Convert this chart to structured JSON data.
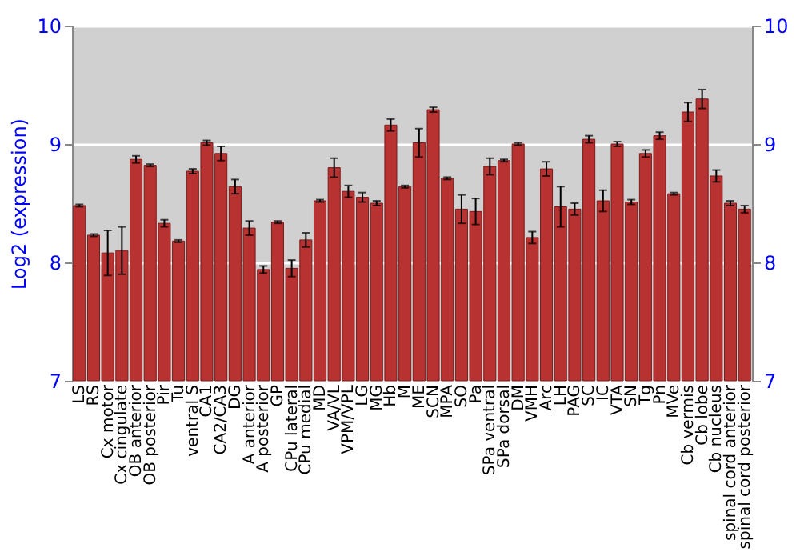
{
  "chart_data": {
    "type": "bar",
    "ylabel": "Log2 (expression)",
    "categories": [
      "LS",
      "RS",
      "Cx motor",
      "Cx cingulate",
      "OB anterior",
      "OB posterior",
      "Pir",
      "Tu",
      "ventral S",
      "CA1",
      "CA2/CA3",
      "DG",
      "A anterior",
      "A posterior",
      "GP",
      "CPu lateral",
      "CPu medial",
      "MD",
      "VA/VL",
      "VPM/VPL",
      "LG",
      "MG",
      "Hb",
      "M",
      "ME",
      "SCN",
      "MPA",
      "SO",
      "Pa",
      "SPa ventral",
      "SPa dorsal",
      "DM",
      "VMH",
      "Arc",
      "LH",
      "PAG",
      "SC",
      "IC",
      "VTA",
      "SN",
      "Tg",
      "Pn",
      "MVe",
      "Cb vermis",
      "Cb lobe",
      "Cb nucleus",
      "spinal cord anterior",
      "spinal cord posterior"
    ],
    "values": [
      8.48,
      8.23,
      8.08,
      8.1,
      8.87,
      8.82,
      8.33,
      8.18,
      8.77,
      9.01,
      8.92,
      8.64,
      8.29,
      7.94,
      8.34,
      7.95,
      8.19,
      8.52,
      8.8,
      8.6,
      8.55,
      8.5,
      9.16,
      8.64,
      9.01,
      9.29,
      8.71,
      8.45,
      8.43,
      8.81,
      8.86,
      9.0,
      8.21,
      8.79,
      8.47,
      8.45,
      9.04,
      8.52,
      9.0,
      8.51,
      8.92,
      9.07,
      8.58,
      9.27,
      9.38,
      8.73,
      8.5,
      8.45
    ],
    "errors": [
      0.01,
      0.01,
      0.19,
      0.2,
      0.03,
      0.01,
      0.03,
      0.01,
      0.02,
      0.02,
      0.06,
      0.06,
      0.06,
      0.03,
      0.01,
      0.07,
      0.06,
      0.01,
      0.08,
      0.05,
      0.04,
      0.02,
      0.05,
      0.01,
      0.12,
      0.02,
      0.01,
      0.12,
      0.11,
      0.07,
      0.01,
      0.01,
      0.05,
      0.06,
      0.17,
      0.05,
      0.03,
      0.09,
      0.02,
      0.02,
      0.03,
      0.03,
      0.01,
      0.08,
      0.08,
      0.05,
      0.02,
      0.03
    ],
    "color": "#b83232",
    "ylim": [
      7,
      10
    ],
    "yticks": [
      7,
      8,
      9,
      10
    ],
    "y2lim": [
      7,
      10
    ],
    "y2ticks": [
      7,
      8,
      9,
      10
    ],
    "grid": "y"
  }
}
